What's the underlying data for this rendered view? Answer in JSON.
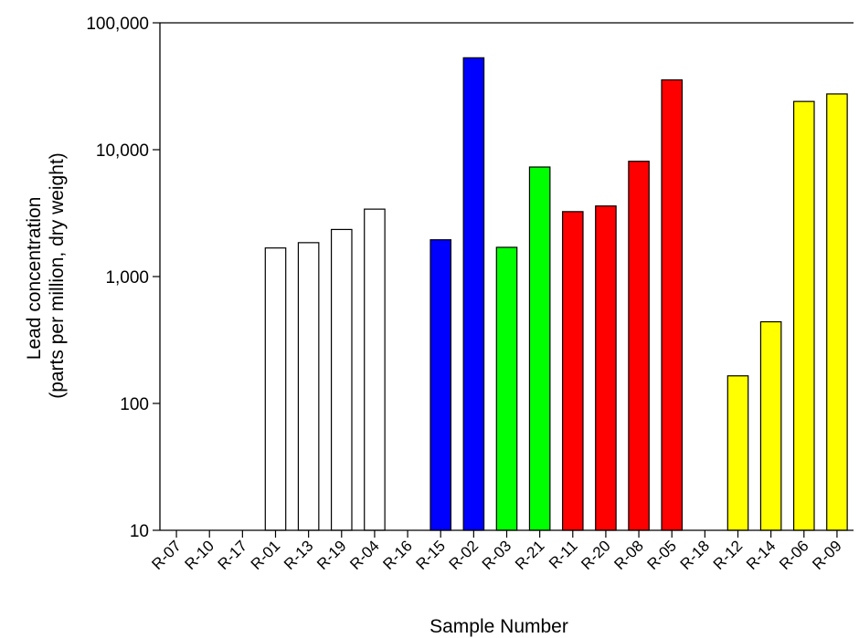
{
  "chart_data": {
    "type": "bar",
    "yscale": "log",
    "ylim": [
      10,
      100000
    ],
    "xlabel": "Sample Number",
    "ylabel": [
      "Lead concentration",
      "(parts per million, dry weight)"
    ],
    "yticks": [
      {
        "value": 10,
        "label": "10"
      },
      {
        "value": 100,
        "label": "100"
      },
      {
        "value": 1000,
        "label": "1,000"
      },
      {
        "value": 10000,
        "label": "10,000"
      },
      {
        "value": 100000,
        "label": "100,000"
      }
    ],
    "categories": [
      "R-07",
      "R-10",
      "R-17",
      "R-01",
      "R-13",
      "R-19",
      "R-04",
      "R-16",
      "R-15",
      "R-02",
      "R-03",
      "R-21",
      "R-11",
      "R-20",
      "R-08",
      "R-05",
      "R-18",
      "R-12",
      "R-14",
      "R-06",
      "R-09"
    ],
    "values": [
      null,
      null,
      null,
      1680,
      1850,
      2350,
      3400,
      null,
      1950,
      53000,
      1700,
      7300,
      3250,
      3600,
      8100,
      35500,
      null,
      165,
      440,
      24000,
      27500
    ],
    "colors": [
      "#ffffff",
      "#ffffff",
      "#ffffff",
      "#ffffff",
      "#ffffff",
      "#ffffff",
      "#ffffff",
      "#ffffff",
      "#0000ff",
      "#0000ff",
      "#00ff00",
      "#00ff00",
      "#ff0000",
      "#ff0000",
      "#ff0000",
      "#ff0000",
      "#ffffff",
      "#ffff00",
      "#ffff00",
      "#ffff00",
      "#ffff00"
    ],
    "grid": false,
    "legend": "none"
  }
}
